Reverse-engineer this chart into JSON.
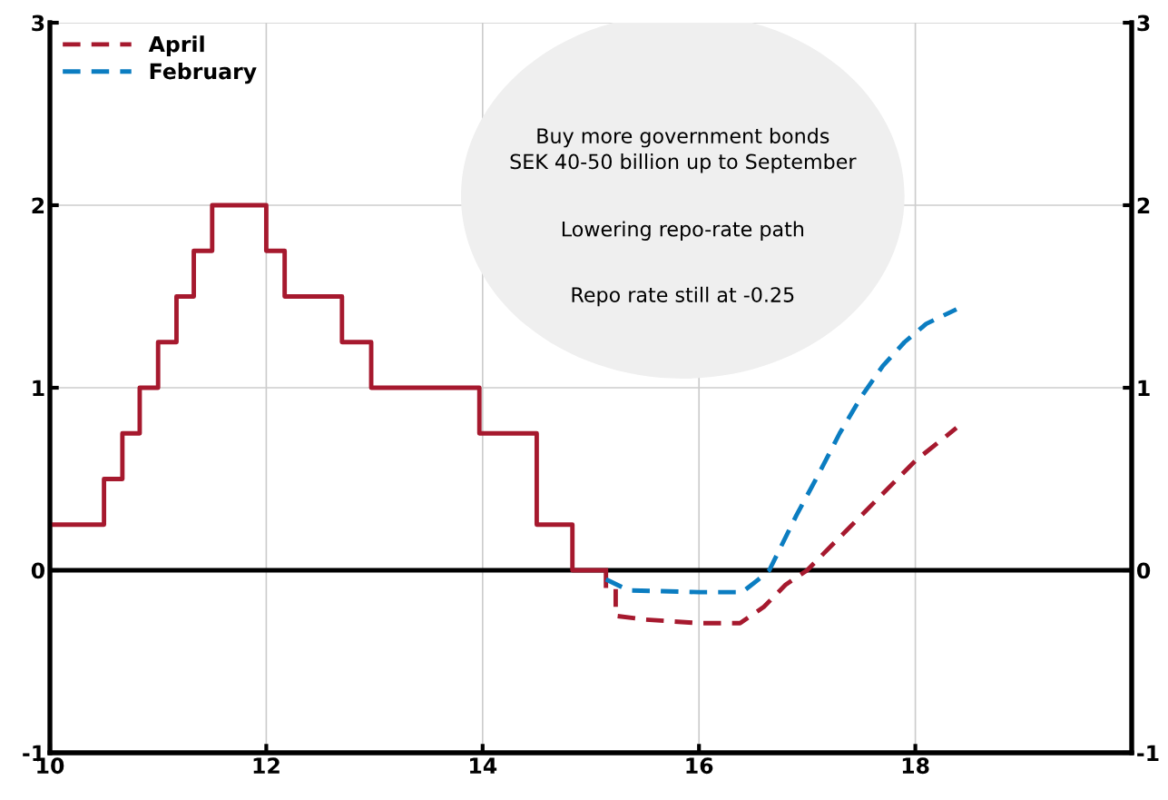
{
  "chart_data": {
    "type": "line",
    "series": [
      {
        "type": "step",
        "color": "#a6192e",
        "line_style": "solid",
        "x": [
          10,
          10.5,
          10.67,
          10.83,
          11.0,
          11.17,
          11.33,
          11.5,
          12.0,
          12.17,
          12.7,
          12.97,
          13.97,
          14.5,
          14.83,
          15.14
        ],
        "values": [
          0.25,
          0.5,
          0.75,
          1.0,
          1.25,
          1.5,
          1.75,
          2.0,
          1.75,
          1.5,
          1.25,
          1.0,
          0.75,
          0.25,
          0,
          0
        ]
      },
      {
        "name": "April",
        "color": "#a6192e",
        "line_style": "dashed",
        "x": [
          15.14,
          15.14,
          15.23,
          15.23,
          15.5,
          16.0,
          16.38,
          16.6,
          16.8,
          17.0,
          17.5,
          18.0,
          18.38
        ],
        "values": [
          0,
          -0.1,
          -0.1,
          -0.25,
          -0.27,
          -0.29,
          -0.29,
          -0.2,
          -0.08,
          0.0,
          0.3,
          0.6,
          0.78
        ]
      },
      {
        "name": "February",
        "color": "#0b7dc1",
        "line_style": "dashed",
        "x": [
          15.14,
          15.35,
          16.0,
          16.4,
          16.55,
          16.65,
          16.9,
          17.1,
          17.3,
          17.5,
          17.7,
          17.9,
          18.1,
          18.38
        ],
        "values": [
          -0.05,
          -0.11,
          -0.12,
          -0.12,
          -0.05,
          0.0,
          0.3,
          0.52,
          0.75,
          0.95,
          1.12,
          1.25,
          1.35,
          1.43
        ]
      }
    ],
    "xlim": [
      10,
      20
    ],
    "xticks": [
      10,
      12,
      14,
      16,
      18
    ],
    "ylim": [
      -1,
      3
    ],
    "yticks": [
      -1,
      0,
      1,
      2,
      3
    ],
    "y2lim": [
      -1,
      3
    ],
    "y2ticks": [
      -1,
      0,
      1,
      2,
      3
    ],
    "ref_lines": [
      {
        "axis": "y",
        "value": 0,
        "color": "#000000"
      }
    ],
    "annotations": [
      "Buy more government bonds\nSEK 40-50 billion up to September",
      "Lowering repo-rate path",
      "Repo rate still at -0.25"
    ],
    "grid": true,
    "legend": "top left",
    "marker": "none"
  }
}
